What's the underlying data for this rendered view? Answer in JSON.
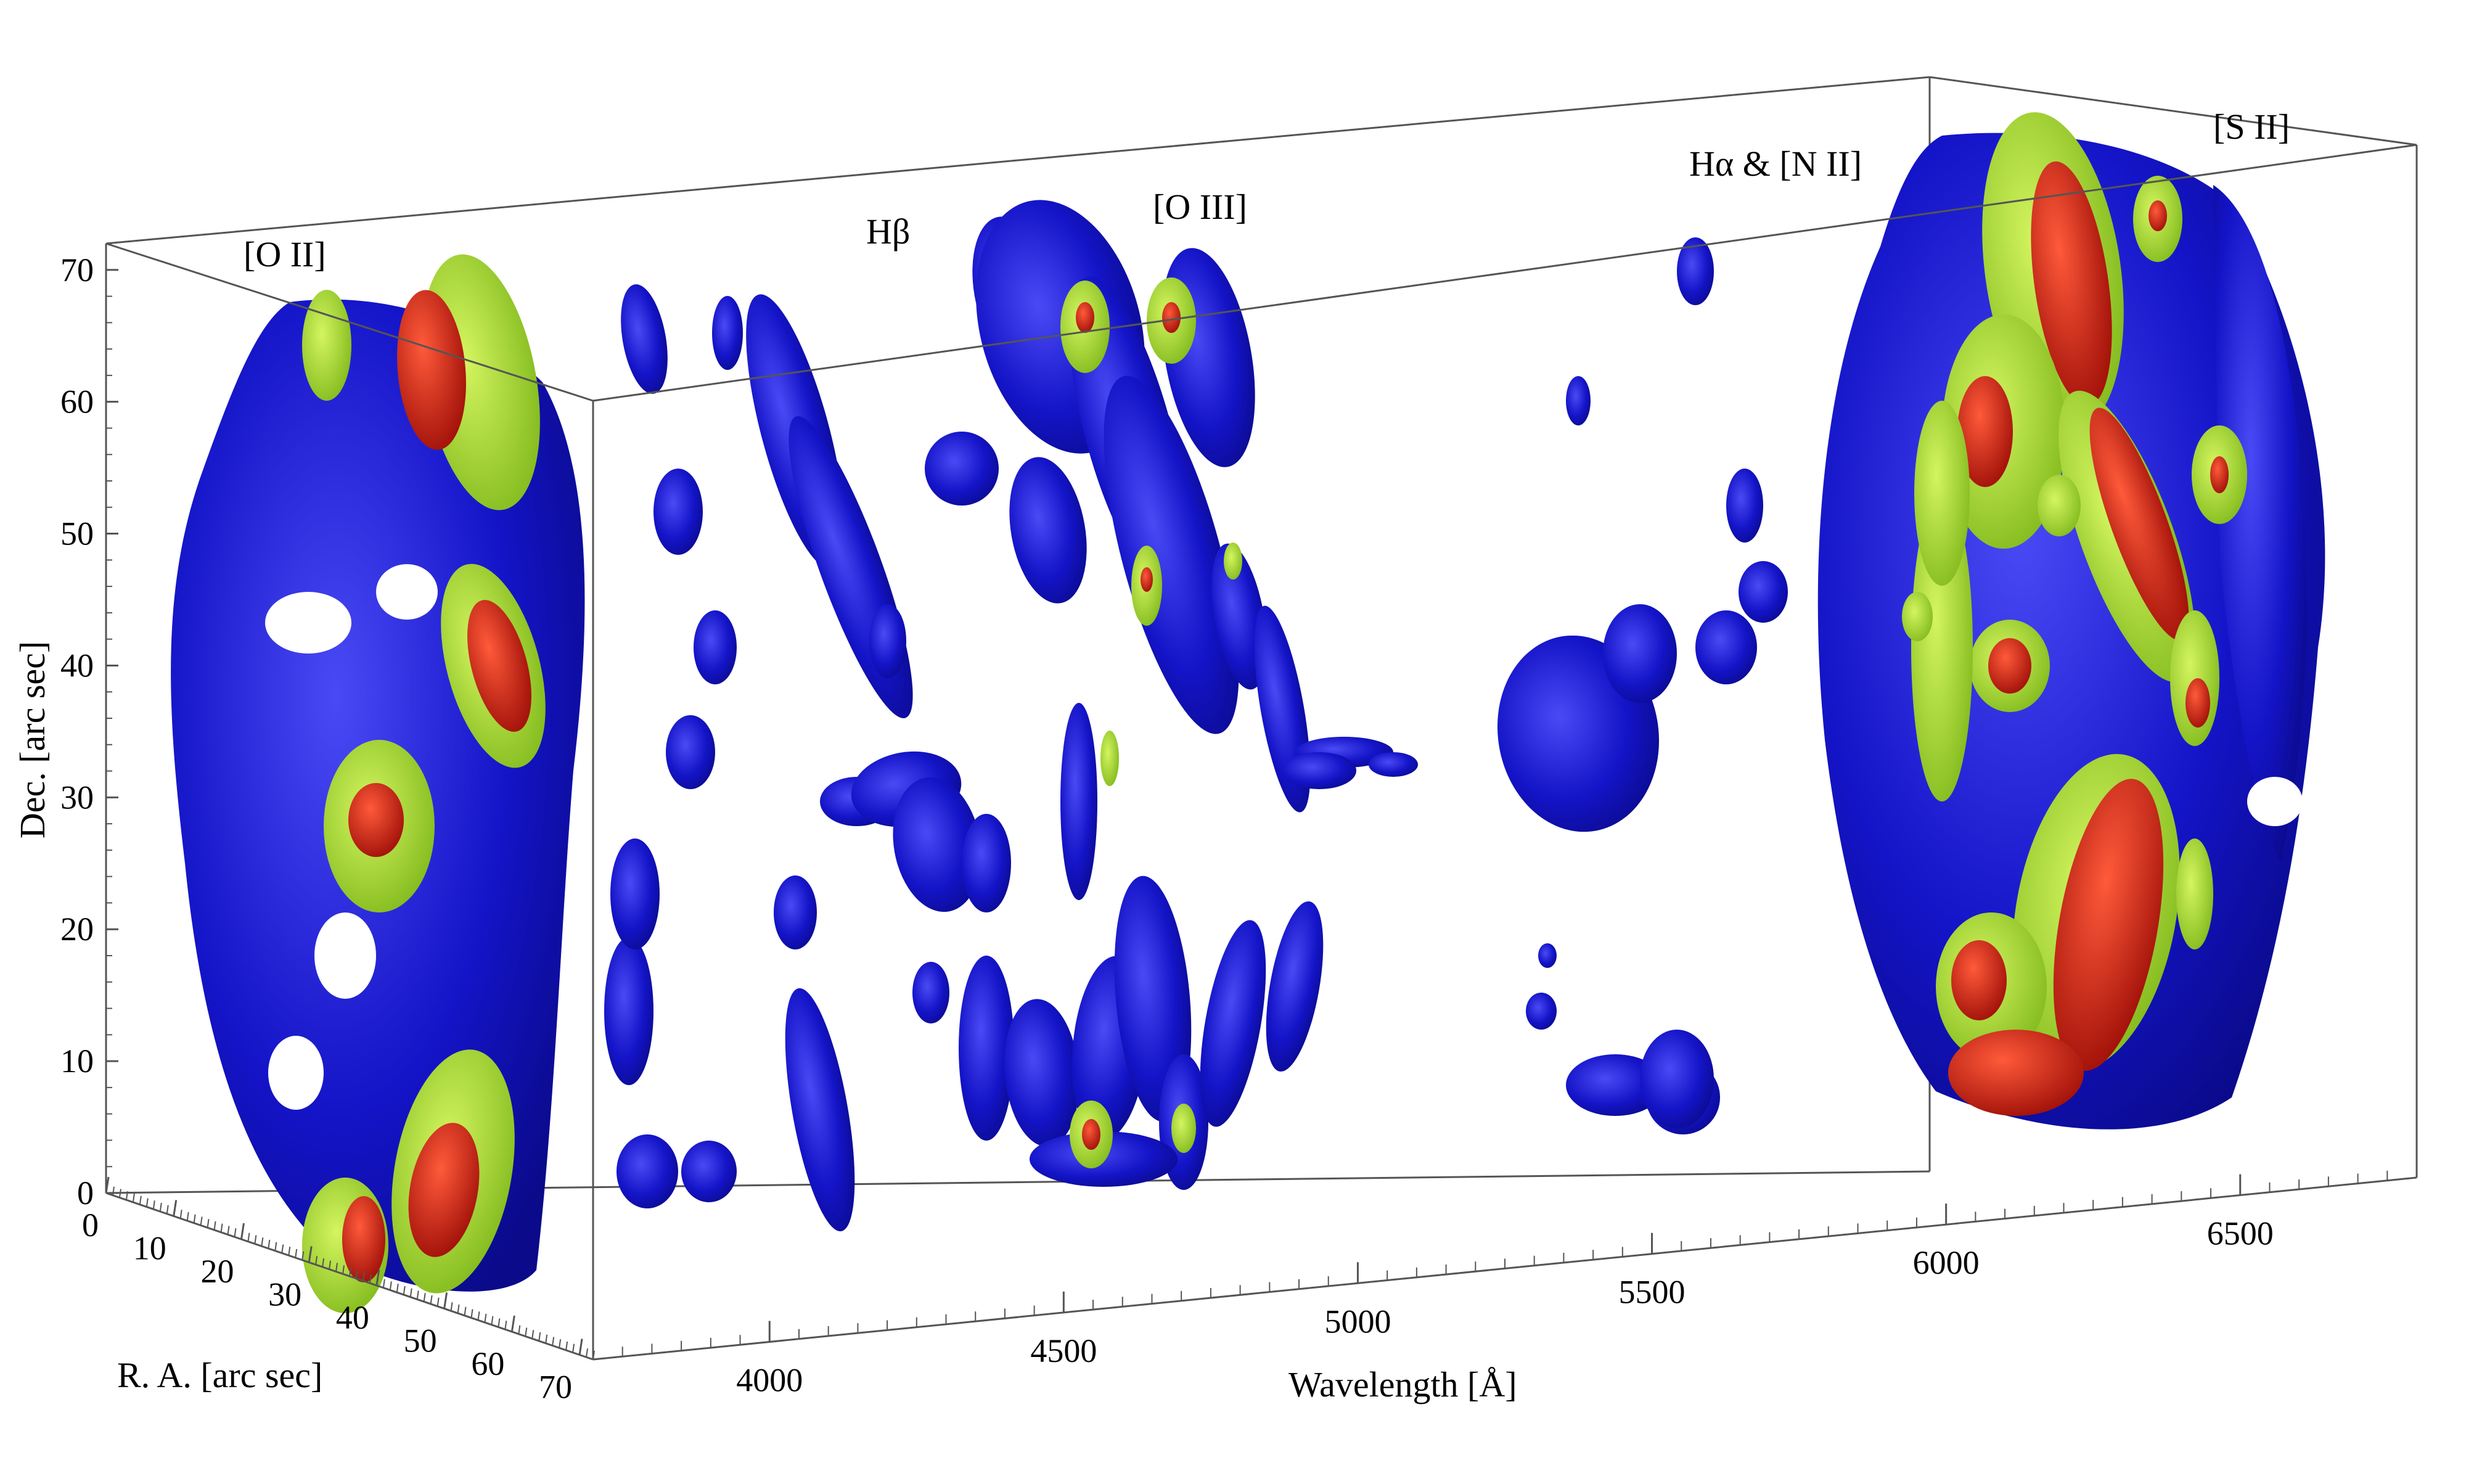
{
  "chart_data": {
    "type": "volume-rendering-3d",
    "title": "",
    "axes": {
      "x": {
        "label": "Wavelength [Å]",
        "ticks": [
          "4000",
          "4500",
          "5000",
          "5500",
          "6000",
          "6500"
        ],
        "range": [
          3700,
          6800
        ]
      },
      "y": {
        "label": "R. A. [arc sec]",
        "ticks": [
          "0",
          "10",
          "20",
          "30",
          "40",
          "50",
          "60",
          "70"
        ],
        "range": [
          0,
          72
        ]
      },
      "z": {
        "label": "Dec. [arc sec]",
        "ticks": [
          "0",
          "10",
          "20",
          "30",
          "40",
          "50",
          "60",
          "70"
        ],
        "range": [
          0,
          72
        ]
      }
    },
    "line_labels": [
      {
        "text": "[O II]",
        "wavelength": 3727
      },
      {
        "text": "Hβ",
        "wavelength": 4861
      },
      {
        "text": "[O III]",
        "wavelength": 5007
      },
      {
        "text": "Hα & [N II]",
        "wavelength": 6563
      },
      {
        "text": "[S II]",
        "wavelength": 6720
      }
    ],
    "isosurface_levels": [
      {
        "name": "low",
        "color": "#1a1ad0"
      },
      {
        "name": "mid",
        "color": "#a6e02a"
      },
      {
        "name": "high",
        "color": "#d42010"
      }
    ]
  }
}
